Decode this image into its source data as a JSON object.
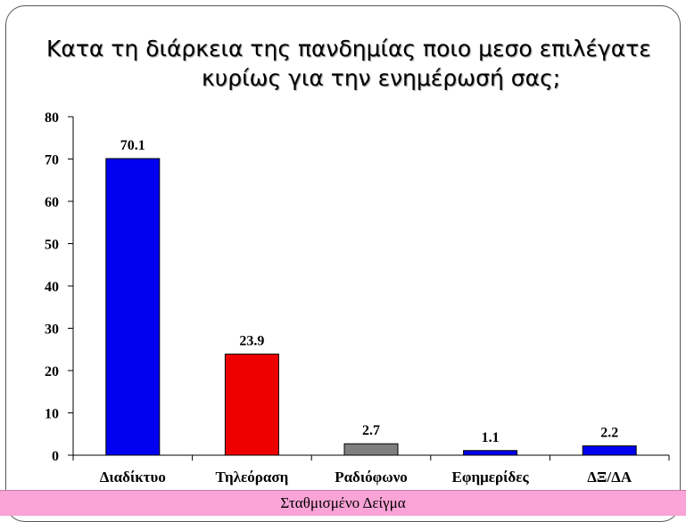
{
  "chart_data": {
    "type": "bar",
    "title_line1": "Κατα τη διάρκεια της πανδημίας ποιο μεσο επιλέγατε",
    "title_line2": "κυρίως για την ενημέρωσή σας;",
    "categories": [
      "Διαδίκτυο",
      "Τηλεόραση",
      "Ραδιόφωνο",
      "Εφημερίδες",
      "ΔΞ/ΔΑ"
    ],
    "values": [
      70.1,
      23.9,
      2.7,
      1.1,
      2.2
    ],
    "value_labels": [
      "70.1",
      "23.9",
      "2.7",
      "1.1",
      "2.2"
    ],
    "bar_colors": [
      "#0000ee",
      "#ee0000",
      "#7f7f7f",
      "#0000ee",
      "#0000ee"
    ],
    "ylim": [
      0,
      80
    ],
    "yticks": [
      0,
      10,
      20,
      30,
      40,
      50,
      60,
      70,
      80
    ],
    "xlabel": "",
    "ylabel": "",
    "grid": false,
    "legend": "none"
  },
  "footer": {
    "text": "Σταθμισμένο Δείγμα",
    "color": "#f9a3d6"
  }
}
